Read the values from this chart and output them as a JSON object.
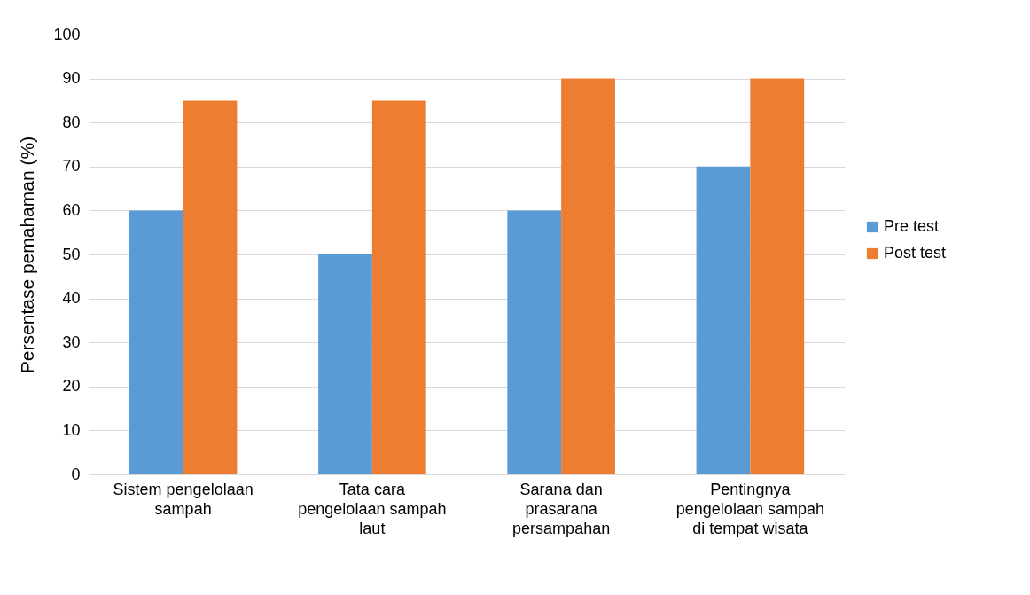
{
  "chart_data": {
    "type": "bar",
    "ylabel": "Persentase pemahaman (%)",
    "categories": [
      "Sistem pengelolaan sampah",
      "Tata cara pengelolaan sampah laut",
      "Sarana dan prasarana persampahan",
      "Pentingnya pengelolaan sampah di tempat wisata"
    ],
    "series": [
      {
        "name": "Pre test",
        "color": "#5b9bd5",
        "values": [
          60,
          50,
          60,
          70
        ]
      },
      {
        "name": "Post test",
        "color": "#ed7d31",
        "values": [
          85,
          85,
          90,
          90
        ]
      }
    ],
    "ylim": [
      0,
      100
    ],
    "yticks": [
      0,
      10,
      20,
      30,
      40,
      50,
      60,
      70,
      80,
      90,
      100
    ],
    "grid": "y",
    "legend": "right"
  }
}
